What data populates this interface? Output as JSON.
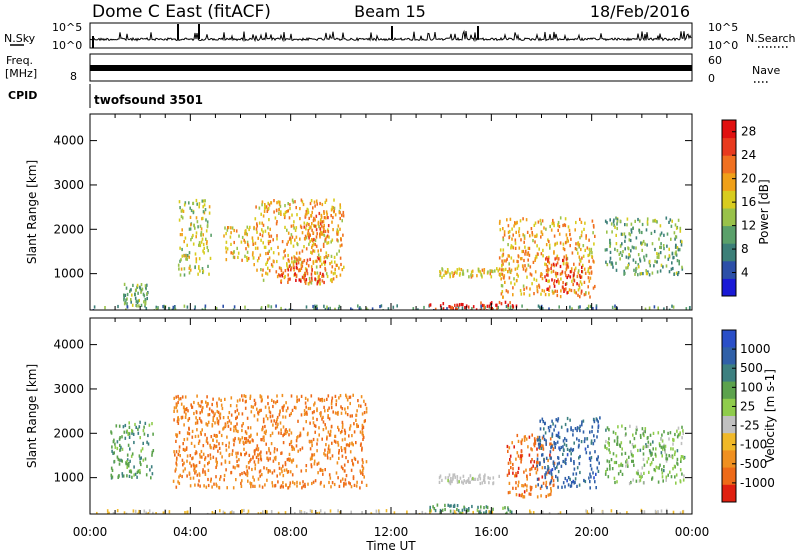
{
  "header": {
    "station": "Dome C East (fitACF)",
    "beam": "Beam 15",
    "date": "18/Feb/2016"
  },
  "status_panels": {
    "nsky": {
      "label": "N.Sky",
      "ticks": [
        "10^5",
        "10^0"
      ]
    },
    "nsearch": {
      "label": "N.Search",
      "ticks": [
        "10^5",
        "10^0"
      ]
    },
    "freq": {
      "label_line1": "Freq.",
      "label_line2": "[MHz]",
      "ticks": [
        "8"
      ]
    },
    "nave": {
      "label": "Nave",
      "ticks": [
        "60",
        "0"
      ]
    },
    "cpid": {
      "label": "CPID",
      "program": "twofsound 3501"
    }
  },
  "colors": {
    "power_scale": [
      "#1a1ad6",
      "#2c4fa8",
      "#3c7f78",
      "#5aa06a",
      "#99c24a",
      "#d8cc1e",
      "#f0a018",
      "#f07020",
      "#e83a1e",
      "#e01010"
    ],
    "velocity_scale": [
      "#2a4fc8",
      "#3060a8",
      "#3d8080",
      "#5ca24d",
      "#8fcc4c",
      "#c0c0c0",
      "#f0b828",
      "#f09020",
      "#ee6a18",
      "#e02010"
    ]
  },
  "chart_data": [
    {
      "type": "heatmap",
      "panel": "power",
      "ylabel": "Slant Range [km]",
      "yticks": [
        1000,
        2000,
        3000,
        4000
      ],
      "ylim": [
        180,
        4600
      ],
      "xlim": [
        0,
        24
      ],
      "xticks": [
        "00:00",
        "04:00",
        "08:00",
        "12:00",
        "16:00",
        "20:00",
        "00:00"
      ],
      "colorbar": {
        "label": "Power [dB]",
        "ticks": [
          4,
          8,
          12,
          16,
          20,
          24,
          28
        ],
        "range": [
          0,
          30
        ]
      },
      "regions": [
        {
          "t": [
            0.0,
            24.0
          ],
          "r": [
            200,
            310
          ],
          "v": 9
        },
        {
          "t": [
            1.3,
            2.3
          ],
          "r": [
            300,
            800
          ],
          "v": 11
        },
        {
          "t": [
            3.5,
            4.8
          ],
          "r": [
            1000,
            2700
          ],
          "v": 15
        },
        {
          "t": [
            5.3,
            6.5
          ],
          "r": [
            1300,
            2100
          ],
          "v": 17
        },
        {
          "t": [
            6.5,
            10.1
          ],
          "r": [
            800,
            2700
          ],
          "v": 19
        },
        {
          "t": [
            7.5,
            9.4
          ],
          "r": [
            800,
            1400
          ],
          "v": 24
        },
        {
          "t": [
            8.5,
            9.5
          ],
          "r": [
            1800,
            2400
          ],
          "v": 22
        },
        {
          "t": [
            13.5,
            17.0
          ],
          "r": [
            180,
            400
          ],
          "v": 27
        },
        {
          "t": [
            13.9,
            16.3
          ],
          "r": [
            950,
            1150
          ],
          "v": 17
        },
        {
          "t": [
            16.3,
            20.1
          ],
          "r": [
            500,
            2300
          ],
          "v": 19
        },
        {
          "t": [
            18.1,
            19.6
          ],
          "r": [
            600,
            1400
          ],
          "v": 26
        },
        {
          "t": [
            20.5,
            23.6
          ],
          "r": [
            1000,
            2300
          ],
          "v": 11
        }
      ]
    },
    {
      "type": "heatmap",
      "panel": "velocity",
      "ylabel": "Slant Range [km]",
      "xlabel": "Time UT",
      "yticks": [
        1000,
        2000,
        3000,
        4000
      ],
      "ylim": [
        180,
        4600
      ],
      "xlim": [
        0,
        24
      ],
      "xticks": [
        "00:00",
        "04:00",
        "08:00",
        "12:00",
        "16:00",
        "20:00",
        "00:00"
      ],
      "colorbar": {
        "label": "Velocity [m s-1]",
        "ticks": [
          "1000",
          "500",
          "100",
          "25",
          "-25",
          "-100",
          "-500",
          "-1000"
        ]
      },
      "regions": [
        {
          "t": [
            0.0,
            24.0
          ],
          "r": [
            200,
            300
          ],
          "v": -30
        },
        {
          "t": [
            0.8,
            2.5
          ],
          "r": [
            1000,
            2300
          ],
          "v": 80
        },
        {
          "t": [
            3.3,
            11.0
          ],
          "r": [
            800,
            2900
          ],
          "v": -300
        },
        {
          "t": [
            13.5,
            16.8
          ],
          "r": [
            180,
            420
          ],
          "v": 110
        },
        {
          "t": [
            13.9,
            16.3
          ],
          "r": [
            900,
            1100
          ],
          "v": 5
        },
        {
          "t": [
            16.6,
            18.5
          ],
          "r": [
            600,
            2000
          ],
          "v": -400
        },
        {
          "t": [
            17.8,
            20.3
          ],
          "r": [
            800,
            2400
          ],
          "v": 700
        },
        {
          "t": [
            20.5,
            23.7
          ],
          "r": [
            900,
            2200
          ],
          "v": 60
        }
      ]
    }
  ]
}
